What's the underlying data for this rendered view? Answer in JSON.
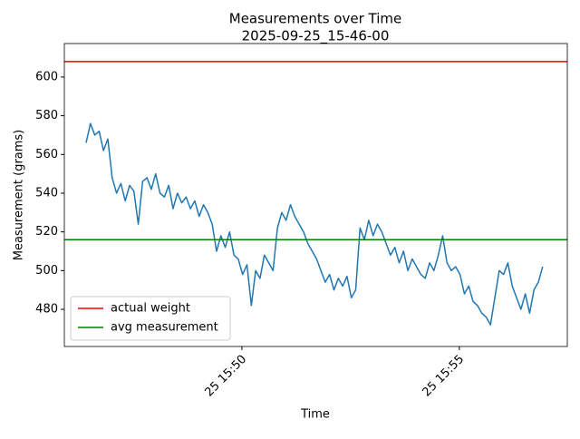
{
  "chart_data": {
    "type": "line",
    "title": "Measurements over Time",
    "subtitle": "2025-09-25_15-46-00",
    "xlabel": "Time",
    "ylabel": "Measurement (grams)",
    "x": [
      "25 15:46:25",
      "25 15:46:31",
      "25 15:46:37",
      "25 15:46:43",
      "25 15:46:49",
      "25 15:46:55",
      "25 15:47:01",
      "25 15:47:07",
      "25 15:47:13",
      "25 15:47:19",
      "25 15:47:25",
      "25 15:47:31",
      "25 15:47:37",
      "25 15:47:43",
      "25 15:47:49",
      "25 15:47:55",
      "25 15:48:01",
      "25 15:48:07",
      "25 15:48:13",
      "25 15:48:19",
      "25 15:48:25",
      "25 15:48:31",
      "25 15:48:37",
      "25 15:48:43",
      "25 15:48:49",
      "25 15:48:55",
      "25 15:49:01",
      "25 15:49:07",
      "25 15:49:13",
      "25 15:49:19",
      "25 15:49:25",
      "25 15:49:31",
      "25 15:49:37",
      "25 15:49:43",
      "25 15:49:49",
      "25 15:49:55",
      "25 15:50:01",
      "25 15:50:07",
      "25 15:50:13",
      "25 15:50:19",
      "25 15:50:25",
      "25 15:50:31",
      "25 15:50:37",
      "25 15:50:43",
      "25 15:50:49",
      "25 15:50:55",
      "25 15:51:01",
      "25 15:51:07",
      "25 15:51:13",
      "25 15:51:19",
      "25 15:51:25",
      "25 15:51:31",
      "25 15:51:37",
      "25 15:51:43",
      "25 15:51:49",
      "25 15:51:55",
      "25 15:52:01",
      "25 15:52:07",
      "25 15:52:13",
      "25 15:52:19",
      "25 15:52:25",
      "25 15:52:31",
      "25 15:52:37",
      "25 15:52:43",
      "25 15:52:49",
      "25 15:52:55",
      "25 15:53:01",
      "25 15:53:07",
      "25 15:53:13",
      "25 15:53:19",
      "25 15:53:25",
      "25 15:53:31",
      "25 15:53:37",
      "25 15:53:43",
      "25 15:53:49",
      "25 15:53:55",
      "25 15:54:01",
      "25 15:54:07",
      "25 15:54:13",
      "25 15:54:19",
      "25 15:54:25",
      "25 15:54:31",
      "25 15:54:37",
      "25 15:54:43",
      "25 15:54:49",
      "25 15:54:55",
      "25 15:55:01",
      "25 15:55:07",
      "25 15:55:13",
      "25 15:55:19",
      "25 15:55:25",
      "25 15:55:31",
      "25 15:55:37",
      "25 15:55:43",
      "25 15:55:49",
      "25 15:55:55",
      "25 15:56:01",
      "25 15:56:07",
      "25 15:56:13",
      "25 15:56:19",
      "25 15:56:25",
      "25 15:56:31",
      "25 15:56:37",
      "25 15:56:43",
      "25 15:56:49",
      "25 15:56:55"
    ],
    "series": [
      {
        "color": "#1f77b4",
        "values": [
          566,
          576,
          570,
          572,
          562,
          568,
          548,
          540,
          545,
          536,
          544,
          541,
          524,
          546,
          548,
          542,
          550,
          540,
          538,
          544,
          532,
          540,
          535,
          538,
          532,
          536,
          528,
          534,
          530,
          524,
          510,
          518,
          512,
          520,
          508,
          506,
          498,
          503,
          482,
          500,
          496,
          508,
          504,
          500,
          522,
          530,
          526,
          534,
          528,
          524,
          520,
          514,
          510,
          506,
          500,
          494,
          498,
          490,
          496,
          492,
          497,
          486,
          490,
          522,
          516,
          526,
          518,
          524,
          520,
          514,
          508,
          512,
          504,
          510,
          500,
          506,
          502,
          498,
          496,
          504,
          500,
          508,
          518,
          504,
          500,
          502,
          498,
          488,
          492,
          484,
          482,
          478,
          476,
          472,
          486,
          500,
          498,
          504,
          492,
          486,
          480,
          488,
          478,
          490,
          494,
          502
        ]
      }
    ],
    "hlines": [
      {
        "name": "actual weight",
        "color": "#ff0000",
        "value": 608
      },
      {
        "name": "avg measurement",
        "color": "#008000",
        "value": 516
      }
    ],
    "xlim": [
      "25 15:45:55",
      "25 15:57:29"
    ],
    "xticks": [
      "25 15:50",
      "25 15:55"
    ],
    "ylim": [
      460.8,
      617.3
    ],
    "yticks": [
      480,
      500,
      520,
      540,
      560,
      580,
      600
    ],
    "legend": "lower left"
  }
}
